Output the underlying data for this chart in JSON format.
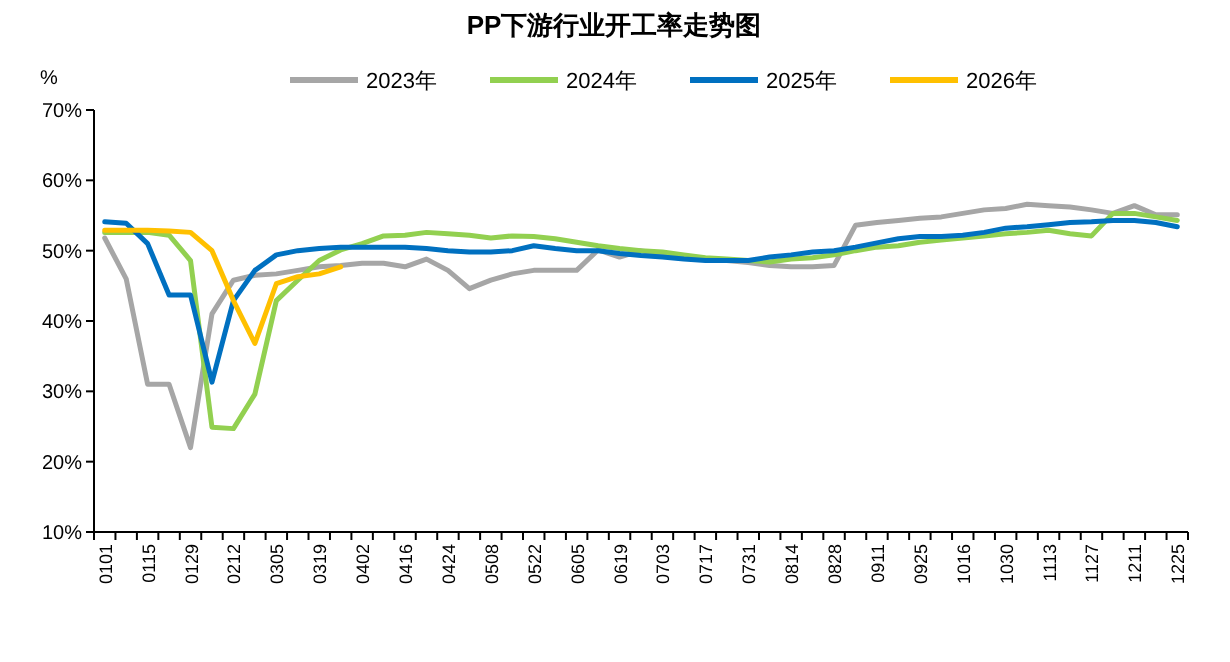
{
  "chart_data": {
    "type": "line",
    "title": "PP下游行业开工率走势图",
    "ylabel": "%",
    "categories": [
      "0101",
      null,
      "0115",
      null,
      "0129",
      null,
      "0212",
      null,
      "0305",
      null,
      "0319",
      null,
      "0402",
      null,
      "0416",
      null,
      "0424",
      null,
      "0508",
      null,
      "0522",
      null,
      "0605",
      null,
      "0619",
      null,
      "0703",
      null,
      "0717",
      null,
      "0731",
      null,
      "0814",
      null,
      "0828",
      null,
      "0911",
      null,
      "0925",
      null,
      "1016",
      null,
      "1030",
      null,
      "1113",
      null,
      "1127",
      null,
      "1211",
      null,
      "1225"
    ],
    "series": [
      {
        "name": "2023年",
        "color": "#a6a6a6",
        "values": [
          51.8,
          46,
          31,
          31,
          22,
          41,
          45.8,
          46.5,
          46.7,
          47.2,
          47.7,
          47.9,
          48.2,
          48.2,
          47.7,
          48.8,
          47.2,
          44.6,
          45.8,
          46.7,
          47.2,
          47.2,
          47.2,
          50.1,
          49.1,
          50,
          49.4,
          49,
          48.8,
          48.6,
          48.3,
          47.9,
          47.7,
          47.7,
          47.9,
          53.6,
          54,
          54.3,
          54.6,
          54.8,
          55.3,
          55.8,
          56,
          56.6,
          56.4,
          56.2,
          55.8,
          55.3,
          56.4,
          55.1,
          55.1
        ]
      },
      {
        "name": "2024年",
        "color": "#92d050",
        "values": [
          52.6,
          52.6,
          52.6,
          52.2,
          48.6,
          24.9,
          24.7,
          29.6,
          42.9,
          45.8,
          48.6,
          50.1,
          51,
          52.1,
          52.2,
          52.6,
          52.4,
          52.2,
          51.8,
          52.1,
          52,
          51.7,
          51.2,
          50.7,
          50.3,
          50,
          49.8,
          49.4,
          49,
          48.8,
          48.6,
          48.4,
          48.8,
          49,
          49.4,
          50,
          50.5,
          50.7,
          51.2,
          51.5,
          51.8,
          52.1,
          52.4,
          52.6,
          52.9,
          52.4,
          52.1,
          55.3,
          55.3,
          54.8,
          54.3
        ]
      },
      {
        "name": "2025年",
        "color": "#0070c0",
        "values": [
          54.1,
          53.9,
          51,
          43.7,
          43.7,
          31.3,
          42.9,
          47.2,
          49.4,
          50,
          50.3,
          50.5,
          50.5,
          50.5,
          50.5,
          50.3,
          50,
          49.8,
          49.8,
          50,
          50.7,
          50.3,
          50,
          50,
          49.6,
          49.3,
          49.1,
          48.8,
          48.6,
          48.6,
          48.6,
          49.1,
          49.4,
          49.8,
          50,
          50.5,
          51.1,
          51.7,
          52,
          52,
          52.2,
          52.6,
          53.2,
          53.4,
          53.7,
          54,
          54.1,
          54.3,
          54.3,
          54,
          53.4
        ]
      },
      {
        "name": "2026年",
        "color": "#ffc000",
        "values": [
          52.9,
          52.9,
          52.9,
          52.8,
          52.6,
          50,
          42.9,
          36.8,
          45.3,
          46.3,
          46.7,
          47.7,
          null,
          null,
          null,
          null,
          null,
          null,
          null,
          null,
          null,
          null,
          null,
          null,
          null,
          null,
          null,
          null,
          null,
          null,
          null,
          null,
          null,
          null,
          null,
          null,
          null,
          null,
          null,
          null,
          null,
          null,
          null,
          null,
          null,
          null,
          null,
          null,
          null,
          null,
          null
        ]
      }
    ],
    "ylim": [
      10,
      70
    ],
    "yticks": [
      {
        "value": 10,
        "label": "10%"
      },
      {
        "value": 20,
        "label": "20%"
      },
      {
        "value": 30,
        "label": "30%"
      },
      {
        "value": 40,
        "label": "40%"
      },
      {
        "value": 50,
        "label": "50%"
      },
      {
        "value": 60,
        "label": "60%"
      },
      {
        "value": 70,
        "label": "70%"
      }
    ],
    "legend": "top",
    "grid": false,
    "marker": "none",
    "line_style": "solid"
  }
}
